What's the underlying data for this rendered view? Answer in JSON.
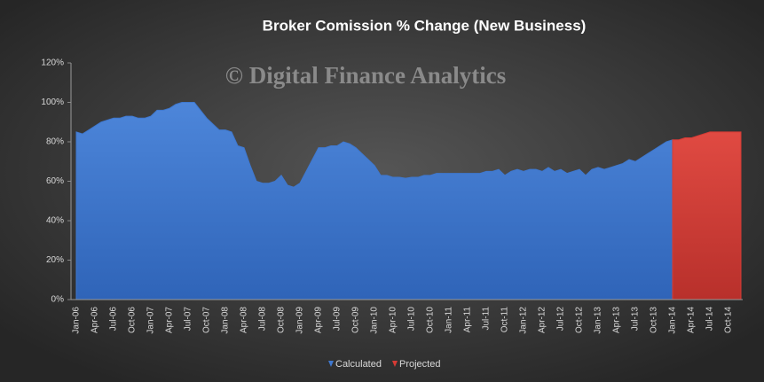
{
  "chart_data": {
    "type": "area",
    "title": "Broker Comission % Change (New Business)",
    "annotation": "© Digital Finance Analytics",
    "categories": [
      "Jan-06",
      null,
      null,
      "Apr-06",
      null,
      null,
      "Jul-06",
      null,
      null,
      "Oct-06",
      null,
      null,
      "Jan-07",
      null,
      null,
      "Apr-07",
      null,
      null,
      "Jul-07",
      null,
      null,
      "Oct-07",
      null,
      null,
      "Jan-08",
      null,
      null,
      "Apr-08",
      null,
      null,
      "Jul-08",
      null,
      null,
      "Oct-08",
      null,
      null,
      "Jan-09",
      null,
      null,
      "Apr-09",
      null,
      null,
      "Jul-09",
      null,
      null,
      "Oct-09",
      null,
      null,
      "Jan-10",
      null,
      null,
      "Apr-10",
      null,
      null,
      "Jul-10",
      null,
      null,
      "Oct-10",
      null,
      null,
      "Jan-11",
      null,
      null,
      "Apr-11",
      null,
      null,
      "Jul-11",
      null,
      null,
      "Oct-11",
      null,
      null,
      "Jan-12",
      null,
      null,
      "Apr-12",
      null,
      null,
      "Jul-12",
      null,
      null,
      "Oct-12",
      null,
      null,
      "Jan-13",
      null,
      null,
      "Apr-13",
      null,
      null,
      "Jul-13",
      null,
      null,
      "Oct-13",
      null,
      null,
      "Jan-14",
      null,
      null,
      "Apr-14",
      null,
      null,
      "Jul-14",
      null,
      null,
      "Oct-14",
      null,
      null
    ],
    "series": [
      {
        "name": "Calculated",
        "color": "#3f78cf",
        "values": [
          85,
          84,
          86,
          88,
          90,
          91,
          92,
          92,
          93,
          93,
          92,
          92,
          93,
          96,
          96,
          97,
          99,
          100,
          100,
          100,
          96,
          92,
          89,
          86,
          86,
          85,
          78,
          77,
          68,
          60,
          59,
          59,
          60,
          63,
          58,
          57,
          59,
          65,
          71,
          77,
          77,
          78,
          78,
          80,
          79,
          77,
          74,
          71,
          68,
          63,
          63,
          62,
          62,
          61.5,
          62,
          62,
          63,
          63,
          64,
          64,
          64,
          64,
          64,
          64,
          64,
          64,
          65,
          65,
          66,
          63,
          65,
          66,
          65,
          66,
          66,
          65,
          67,
          65,
          66,
          64,
          65,
          66,
          63,
          66,
          67,
          66,
          67,
          68,
          69,
          71,
          70,
          72,
          74,
          76,
          78,
          80,
          81,
          null,
          null,
          null,
          null,
          null,
          null,
          null,
          null,
          null,
          null,
          null
        ]
      },
      {
        "name": "Projected",
        "color": "#d63b35",
        "values": [
          null,
          null,
          null,
          null,
          null,
          null,
          null,
          null,
          null,
          null,
          null,
          null,
          null,
          null,
          null,
          null,
          null,
          null,
          null,
          null,
          null,
          null,
          null,
          null,
          null,
          null,
          null,
          null,
          null,
          null,
          null,
          null,
          null,
          null,
          null,
          null,
          null,
          null,
          null,
          null,
          null,
          null,
          null,
          null,
          null,
          null,
          null,
          null,
          null,
          null,
          null,
          null,
          null,
          null,
          null,
          null,
          null,
          null,
          null,
          null,
          null,
          null,
          null,
          null,
          null,
          null,
          null,
          null,
          null,
          null,
          null,
          null,
          null,
          null,
          null,
          null,
          null,
          null,
          null,
          null,
          null,
          null,
          null,
          null,
          null,
          null,
          null,
          null,
          null,
          null,
          null,
          null,
          null,
          null,
          null,
          null,
          81,
          81,
          82,
          82,
          83,
          84,
          85,
          85,
          85,
          85,
          85,
          85
        ]
      }
    ],
    "ylim": [
      0,
      120
    ],
    "yticks": [
      {
        "value": 0,
        "label": "0%"
      },
      {
        "value": 20,
        "label": "20%"
      },
      {
        "value": 40,
        "label": "40%"
      },
      {
        "value": 60,
        "label": "60%"
      },
      {
        "value": 80,
        "label": "80%"
      },
      {
        "value": 100,
        "label": "100%"
      },
      {
        "value": 120,
        "label": "120%"
      }
    ],
    "legend": "bottom"
  }
}
